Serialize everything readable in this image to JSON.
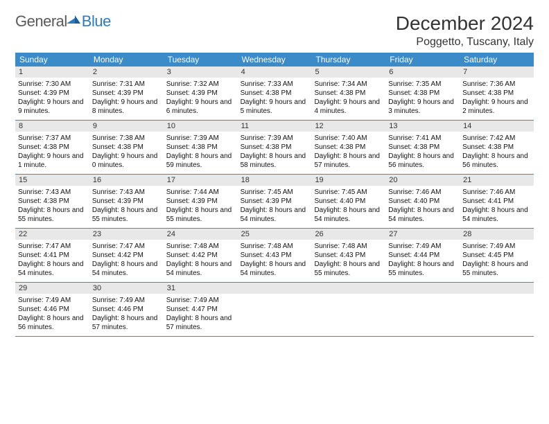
{
  "brand": {
    "word1": "General",
    "word2": "Blue"
  },
  "title": "December 2024",
  "location": "Poggetto, Tuscany, Italy",
  "header_bg": "#3b8bc9",
  "daynum_bg": "#e8e8e8",
  "border_color": "#3b8bc9",
  "weekdays": [
    "Sunday",
    "Monday",
    "Tuesday",
    "Wednesday",
    "Thursday",
    "Friday",
    "Saturday"
  ],
  "weeks": [
    [
      {
        "n": "1",
        "sr": "7:30 AM",
        "ss": "4:39 PM",
        "dl": "9 hours and 9 minutes."
      },
      {
        "n": "2",
        "sr": "7:31 AM",
        "ss": "4:39 PM",
        "dl": "9 hours and 8 minutes."
      },
      {
        "n": "3",
        "sr": "7:32 AM",
        "ss": "4:39 PM",
        "dl": "9 hours and 6 minutes."
      },
      {
        "n": "4",
        "sr": "7:33 AM",
        "ss": "4:38 PM",
        "dl": "9 hours and 5 minutes."
      },
      {
        "n": "5",
        "sr": "7:34 AM",
        "ss": "4:38 PM",
        "dl": "9 hours and 4 minutes."
      },
      {
        "n": "6",
        "sr": "7:35 AM",
        "ss": "4:38 PM",
        "dl": "9 hours and 3 minutes."
      },
      {
        "n": "7",
        "sr": "7:36 AM",
        "ss": "4:38 PM",
        "dl": "9 hours and 2 minutes."
      }
    ],
    [
      {
        "n": "8",
        "sr": "7:37 AM",
        "ss": "4:38 PM",
        "dl": "9 hours and 1 minute."
      },
      {
        "n": "9",
        "sr": "7:38 AM",
        "ss": "4:38 PM",
        "dl": "9 hours and 0 minutes."
      },
      {
        "n": "10",
        "sr": "7:39 AM",
        "ss": "4:38 PM",
        "dl": "8 hours and 59 minutes."
      },
      {
        "n": "11",
        "sr": "7:39 AM",
        "ss": "4:38 PM",
        "dl": "8 hours and 58 minutes."
      },
      {
        "n": "12",
        "sr": "7:40 AM",
        "ss": "4:38 PM",
        "dl": "8 hours and 57 minutes."
      },
      {
        "n": "13",
        "sr": "7:41 AM",
        "ss": "4:38 PM",
        "dl": "8 hours and 56 minutes."
      },
      {
        "n": "14",
        "sr": "7:42 AM",
        "ss": "4:38 PM",
        "dl": "8 hours and 56 minutes."
      }
    ],
    [
      {
        "n": "15",
        "sr": "7:43 AM",
        "ss": "4:38 PM",
        "dl": "8 hours and 55 minutes."
      },
      {
        "n": "16",
        "sr": "7:43 AM",
        "ss": "4:39 PM",
        "dl": "8 hours and 55 minutes."
      },
      {
        "n": "17",
        "sr": "7:44 AM",
        "ss": "4:39 PM",
        "dl": "8 hours and 55 minutes."
      },
      {
        "n": "18",
        "sr": "7:45 AM",
        "ss": "4:39 PM",
        "dl": "8 hours and 54 minutes."
      },
      {
        "n": "19",
        "sr": "7:45 AM",
        "ss": "4:40 PM",
        "dl": "8 hours and 54 minutes."
      },
      {
        "n": "20",
        "sr": "7:46 AM",
        "ss": "4:40 PM",
        "dl": "8 hours and 54 minutes."
      },
      {
        "n": "21",
        "sr": "7:46 AM",
        "ss": "4:41 PM",
        "dl": "8 hours and 54 minutes."
      }
    ],
    [
      {
        "n": "22",
        "sr": "7:47 AM",
        "ss": "4:41 PM",
        "dl": "8 hours and 54 minutes."
      },
      {
        "n": "23",
        "sr": "7:47 AM",
        "ss": "4:42 PM",
        "dl": "8 hours and 54 minutes."
      },
      {
        "n": "24",
        "sr": "7:48 AM",
        "ss": "4:42 PM",
        "dl": "8 hours and 54 minutes."
      },
      {
        "n": "25",
        "sr": "7:48 AM",
        "ss": "4:43 PM",
        "dl": "8 hours and 54 minutes."
      },
      {
        "n": "26",
        "sr": "7:48 AM",
        "ss": "4:43 PM",
        "dl": "8 hours and 55 minutes."
      },
      {
        "n": "27",
        "sr": "7:49 AM",
        "ss": "4:44 PM",
        "dl": "8 hours and 55 minutes."
      },
      {
        "n": "28",
        "sr": "7:49 AM",
        "ss": "4:45 PM",
        "dl": "8 hours and 55 minutes."
      }
    ],
    [
      {
        "n": "29",
        "sr": "7:49 AM",
        "ss": "4:46 PM",
        "dl": "8 hours and 56 minutes."
      },
      {
        "n": "30",
        "sr": "7:49 AM",
        "ss": "4:46 PM",
        "dl": "8 hours and 57 minutes."
      },
      {
        "n": "31",
        "sr": "7:49 AM",
        "ss": "4:47 PM",
        "dl": "8 hours and 57 minutes."
      },
      null,
      null,
      null,
      null
    ]
  ],
  "labels": {
    "sunrise": "Sunrise: ",
    "sunset": "Sunset: ",
    "daylight": "Daylight: "
  }
}
